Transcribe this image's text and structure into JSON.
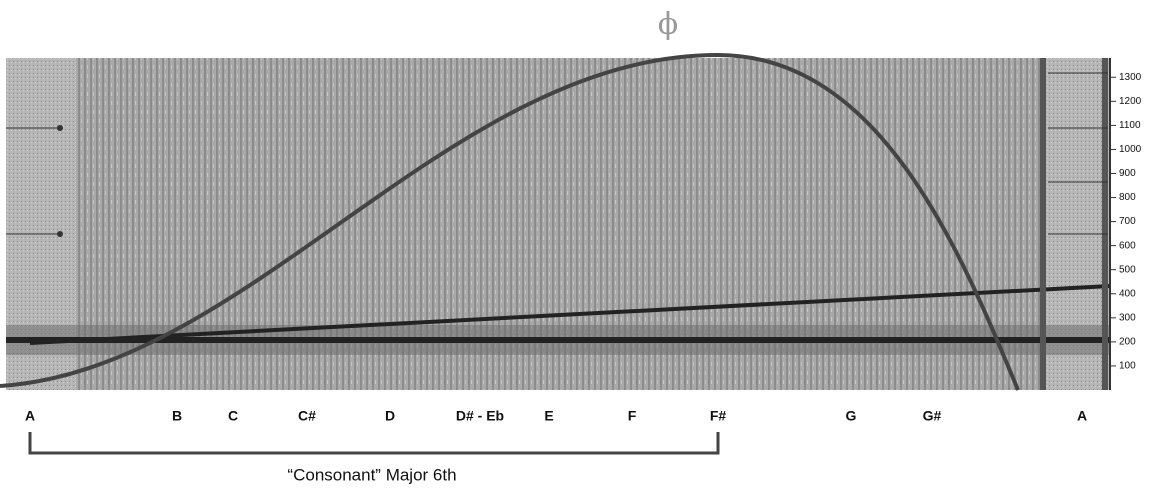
{
  "symbol": "ϕ",
  "frequency_axis": {
    "range": [
      0,
      1380
    ],
    "ticks": [
      100,
      200,
      300,
      400,
      500,
      600,
      700,
      800,
      900,
      1000,
      1100,
      1200,
      1300
    ]
  },
  "notes": [
    "A",
    "B",
    "C",
    "C#",
    "D",
    "D# - Eb",
    "E",
    "F",
    "F#",
    "G",
    "G#",
    "A"
  ],
  "bracket": {
    "label": "“Consonant” Major 6th"
  }
}
